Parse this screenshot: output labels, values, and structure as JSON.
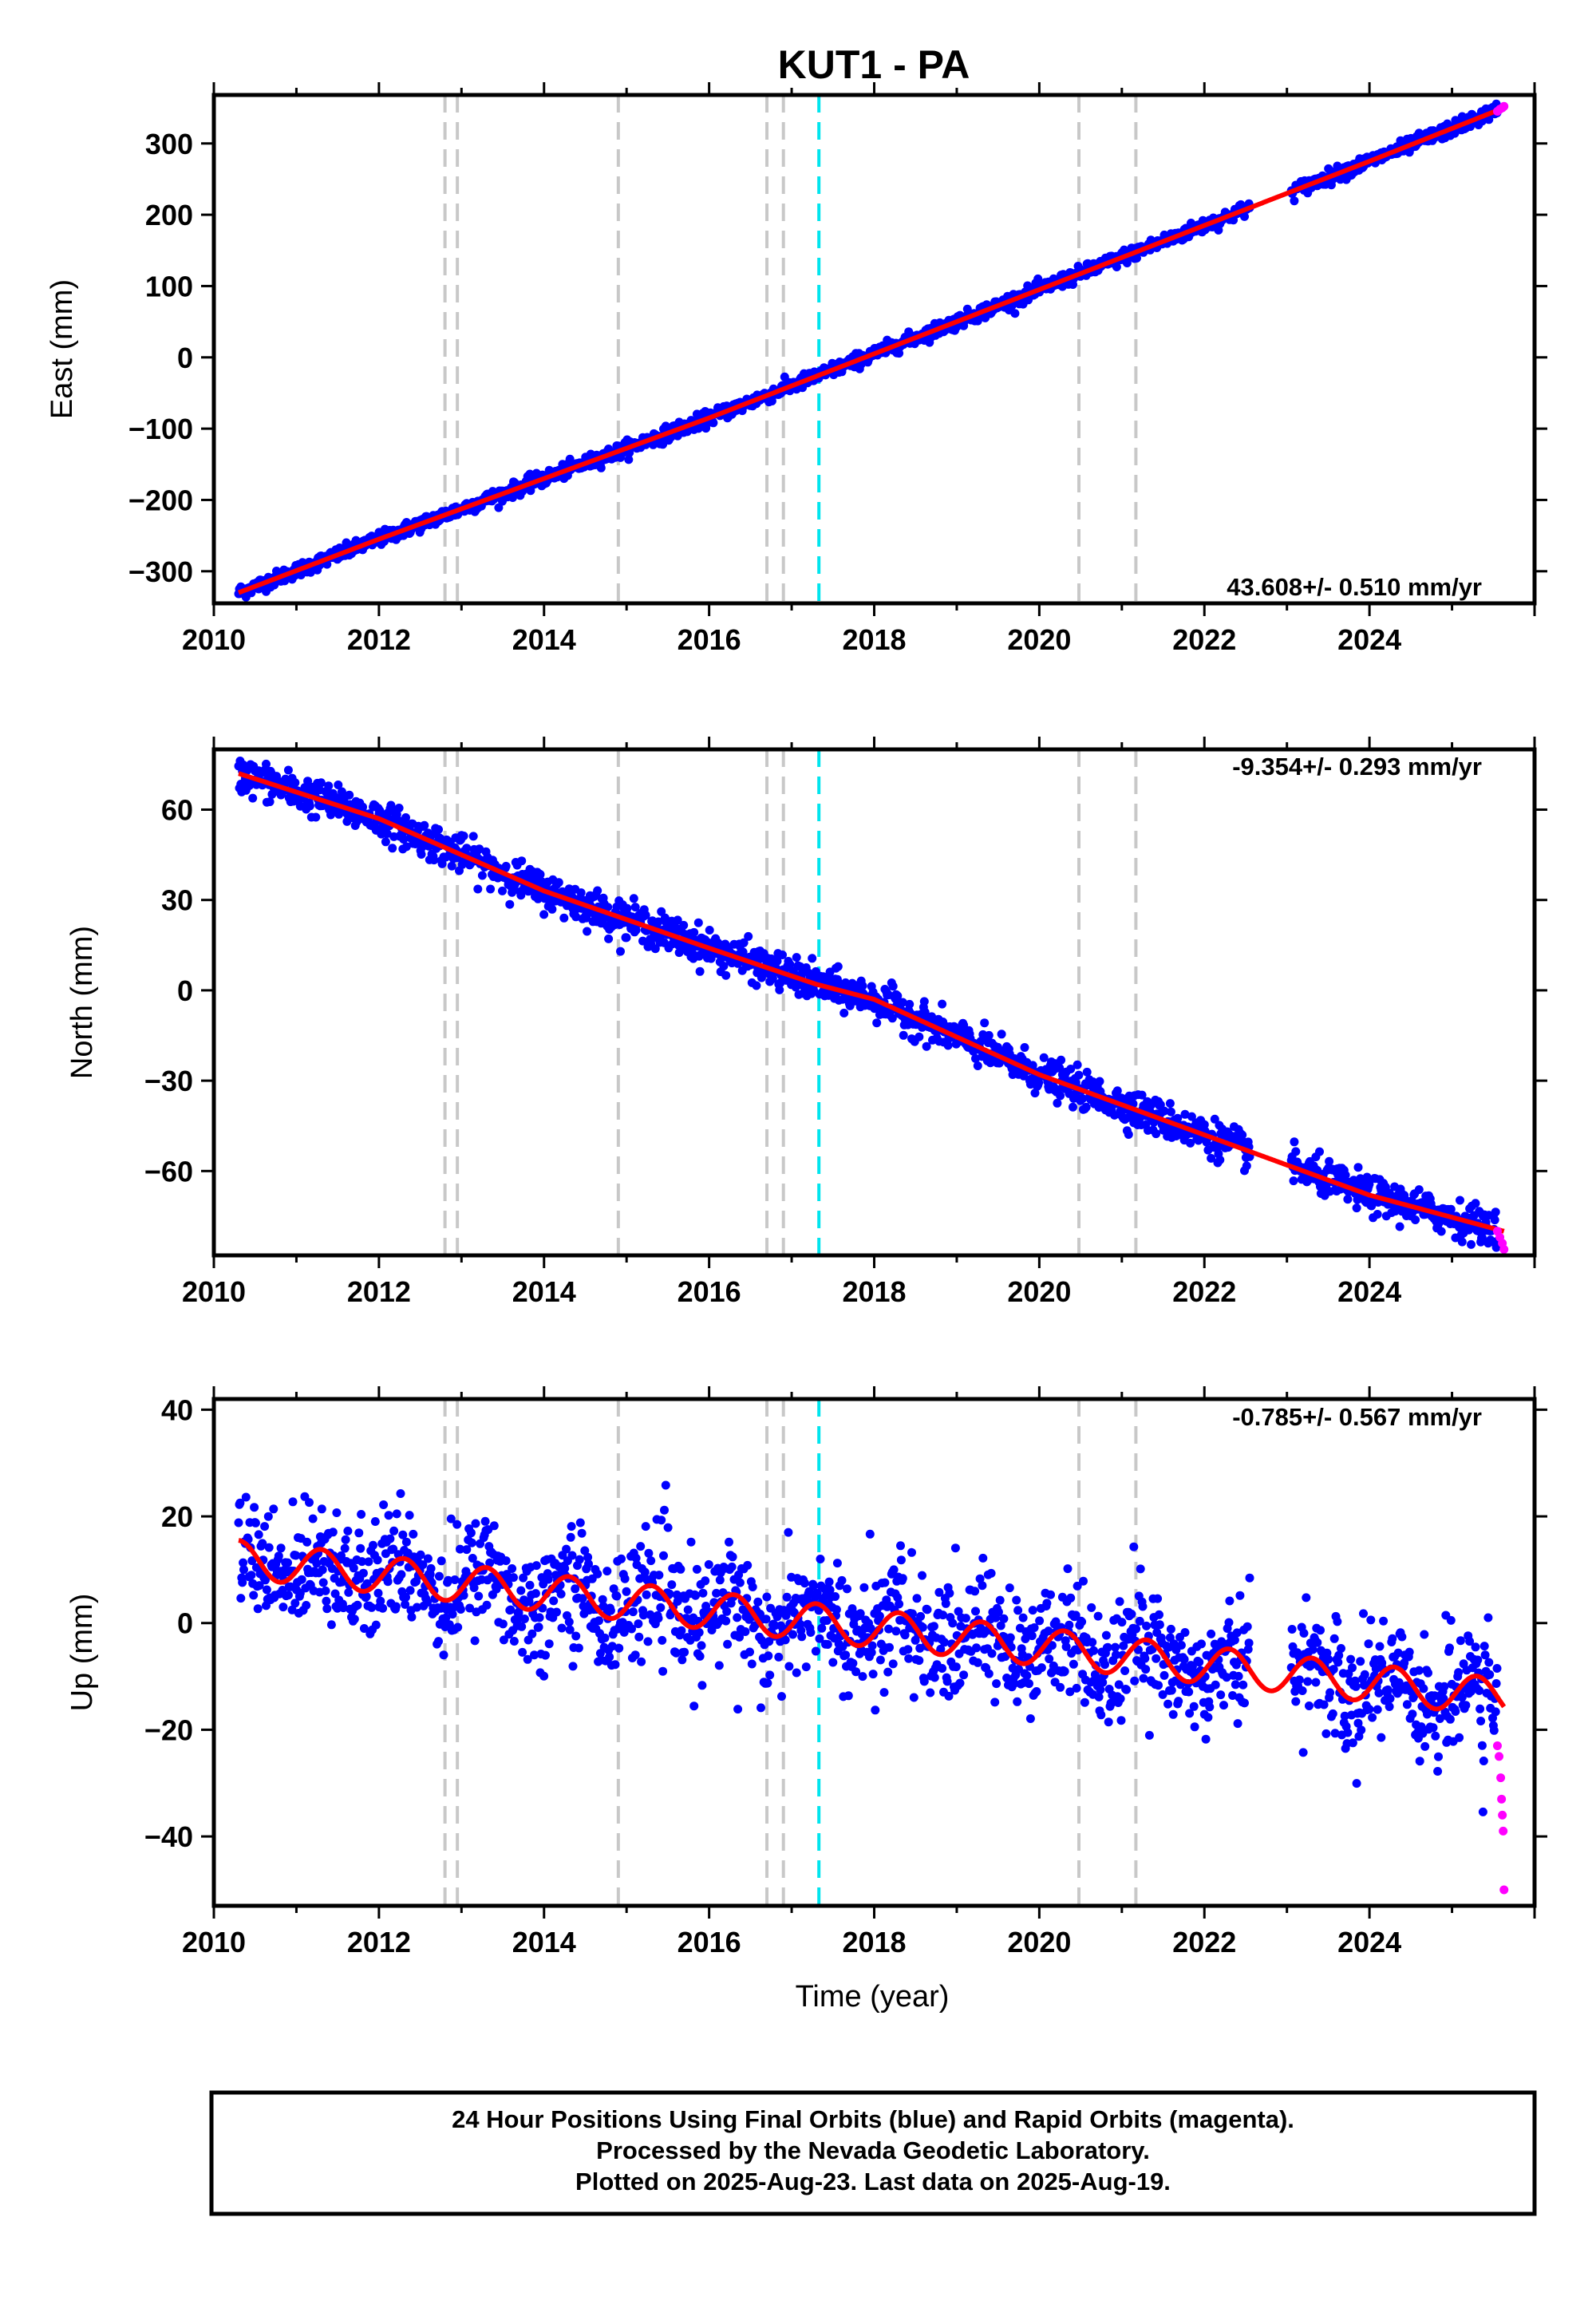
{
  "title": "KUT1 - PA",
  "colors": {
    "final": "#0000ff",
    "rapid": "#ff00ff",
    "model": "#ff0000",
    "equipment": "#c8c8c8",
    "earthquake": "#00e5ee"
  },
  "x_axis": {
    "label": "Time (year)",
    "ticks": [
      "2010",
      "2012",
      "2014",
      "2016",
      "2018",
      "2020",
      "2022",
      "2024"
    ]
  },
  "events": {
    "gray": [
      2012.8,
      2012.95,
      2014.9,
      2016.7,
      2016.9,
      2020.48,
      2021.17
    ],
    "cyan": [
      2017.33
    ]
  },
  "footer": {
    "line1": "24 Hour Positions Using Final Orbits (blue) and Rapid Orbits (magenta).",
    "line2": "Processed by the Nevada Geodetic Laboratory.",
    "line3": "Plotted on 2025-Aug-23. Last data on 2025-Aug-19."
  },
  "chart_data": [
    {
      "type": "scatter",
      "component": "East",
      "ylabel": "East (mm)",
      "xlim": [
        2010.0,
        2026.0
      ],
      "ylim": [
        -345,
        368
      ],
      "yticks": [
        "300",
        "200",
        "100",
        "0",
        "−100",
        "−200",
        "−300"
      ],
      "rate": "43.608+/- 0.510 mm/yr",
      "data_span": [
        2010.3,
        2025.63
      ],
      "gap": [
        2022.55,
        2023.05
      ],
      "model": {
        "x": [
          2010.3,
          2012.0,
          2014.0,
          2016.0,
          2018.0,
          2020.0,
          2022.0,
          2024.0,
          2025.63
        ],
        "y": [
          -330,
          -255,
          -170,
          -85,
          5,
          95,
          185,
          275,
          350
        ]
      },
      "rapid": {
        "x": [
          2025.55,
          2025.58,
          2025.61,
          2025.63
        ],
        "y": [
          345,
          348,
          350,
          352
        ]
      }
    },
    {
      "type": "scatter",
      "component": "North",
      "ylabel": "North (mm)",
      "xlim": [
        2010.0,
        2026.0
      ],
      "ylim": [
        -88,
        80
      ],
      "yticks": [
        "60",
        "30",
        "0",
        "−30",
        "−60"
      ],
      "rate": "-9.354+/- 0.293 mm/yr",
      "data_span": [
        2010.3,
        2025.63
      ],
      "gap": [
        2022.55,
        2023.05
      ],
      "model": {
        "x": [
          2010.3,
          2012.0,
          2014.0,
          2016.0,
          2017.3,
          2018.0,
          2020.0,
          2022.0,
          2024.0,
          2025.63
        ],
        "y": [
          72,
          57,
          33,
          14,
          2,
          -3,
          -28,
          -48,
          -68,
          -80
        ]
      },
      "rapid": {
        "x": [
          2025.55,
          2025.58,
          2025.61,
          2025.63
        ],
        "y": [
          -80,
          -82,
          -84,
          -86
        ]
      }
    },
    {
      "type": "scatter",
      "component": "Up",
      "ylabel": "Up (mm)",
      "xlim": [
        2010.0,
        2026.0
      ],
      "ylim": [
        -53,
        42
      ],
      "yticks": [
        "40",
        "20",
        "0",
        "−20",
        "−40"
      ],
      "rate": "-0.785+/- 0.567 mm/yr",
      "data_span": [
        2010.3,
        2025.63
      ],
      "gap": [
        2022.55,
        2023.05
      ],
      "model": {
        "trend_start": 12,
        "trend_end": -14,
        "seasonal_amplitude": 3.5
      },
      "rapid": {
        "x": [
          2025.55,
          2025.57,
          2025.59,
          2025.6,
          2025.61,
          2025.62,
          2025.63
        ],
        "y": [
          -23,
          -25,
          -29,
          -33,
          -36,
          -39,
          -50
        ]
      }
    }
  ]
}
